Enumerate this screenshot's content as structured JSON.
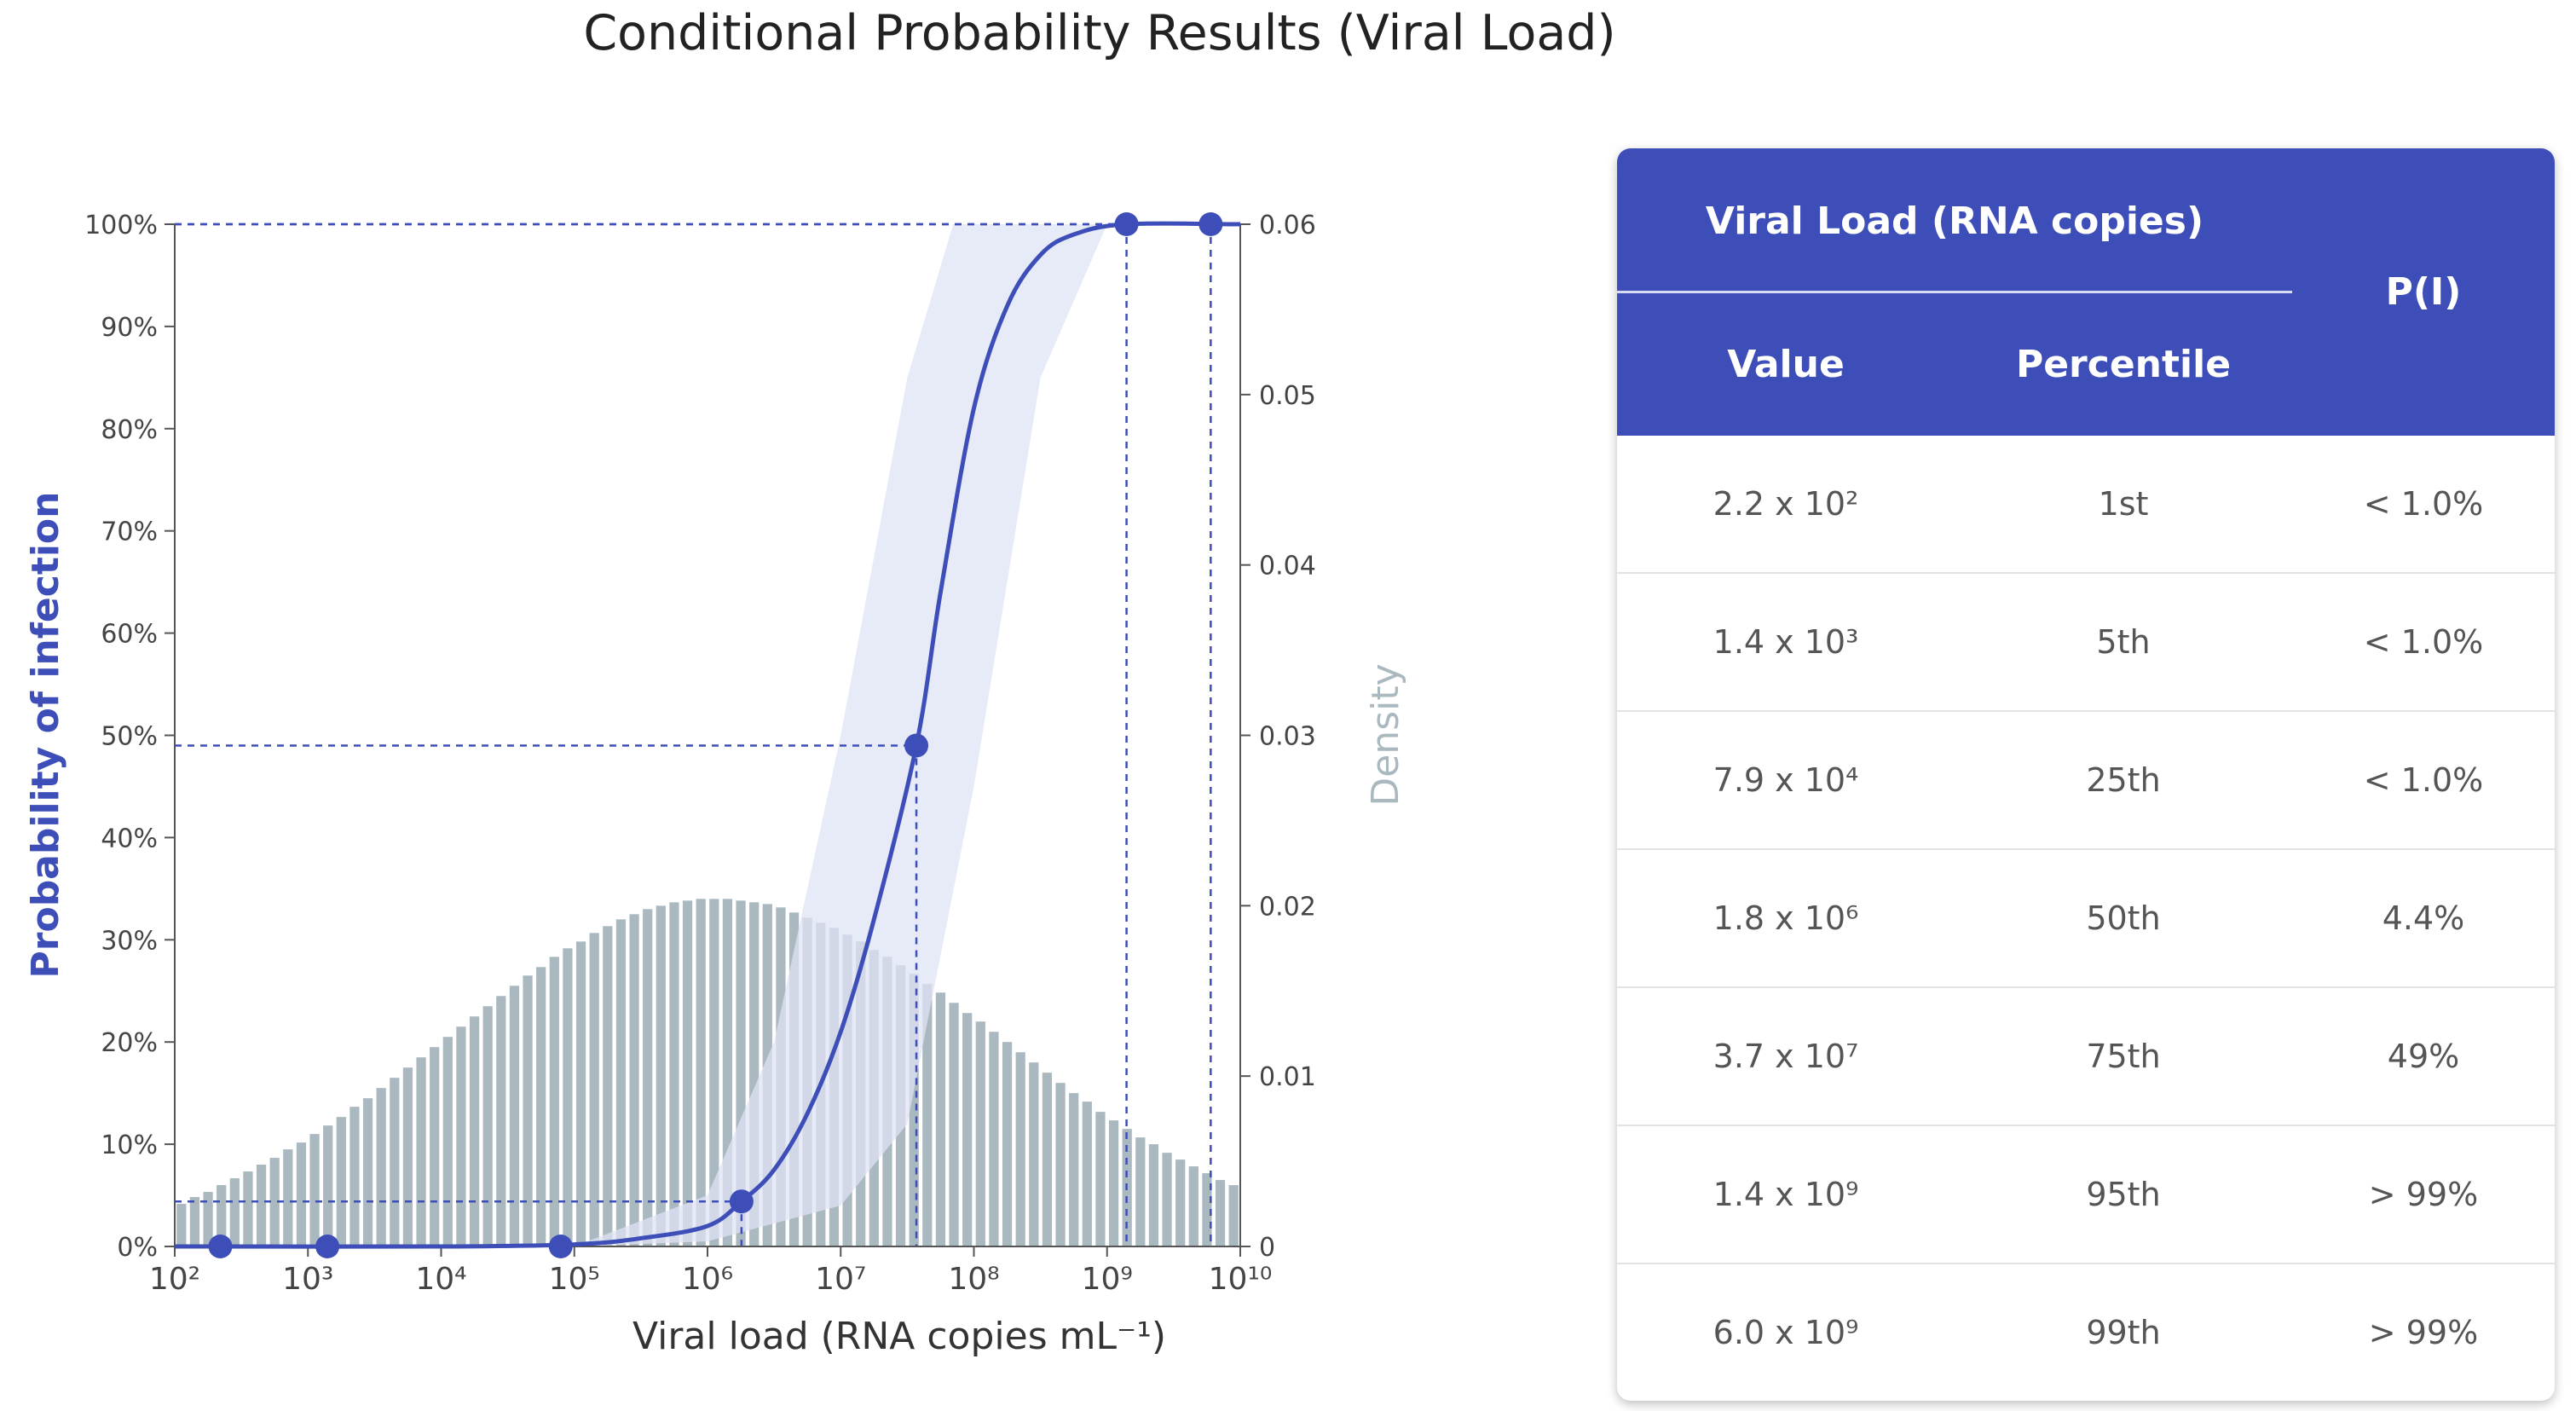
{
  "title": "Conditional Probability Results (Viral Load)",
  "chart_data": {
    "type": "line",
    "xlabel": "Viral load (RNA copies mL⁻¹)",
    "ylabel_left": "Probability of infection",
    "ylabel_right": "Density",
    "x_scale": "log",
    "xlim": [
      100,
      10000000000
    ],
    "ylim_left": [
      0,
      1
    ],
    "ylim_right": [
      0,
      0.06
    ],
    "x_ticks": [
      "10²",
      "10³",
      "10⁴",
      "10⁵",
      "10⁶",
      "10⁷",
      "10⁸",
      "10⁹",
      "10¹⁰"
    ],
    "y_ticks_left": [
      "0%",
      "10%",
      "20%",
      "30%",
      "40%",
      "50%",
      "60%",
      "70%",
      "80%",
      "90%",
      "100%"
    ],
    "y_ticks_right": [
      "0",
      "0.01",
      "0.02",
      "0.03",
      "0.04",
      "0.05",
      "0.06"
    ],
    "dose_response": {
      "type": "line",
      "color": "#3d4eb8",
      "points": [
        {
          "x": 100,
          "y": 0
        },
        {
          "x": 10000,
          "y": 0
        },
        {
          "x": 100000,
          "y": 0.002
        },
        {
          "x": 316228,
          "y": 0.008
        },
        {
          "x": 1000000,
          "y": 0.02
        },
        {
          "x": 1800000,
          "y": 0.044
        },
        {
          "x": 3162278,
          "y": 0.075
        },
        {
          "x": 5623413,
          "y": 0.13
        },
        {
          "x": 10000000,
          "y": 0.21
        },
        {
          "x": 17782794,
          "y": 0.32
        },
        {
          "x": 37000000,
          "y": 0.49
        },
        {
          "x": 56234133,
          "y": 0.64
        },
        {
          "x": 100000000,
          "y": 0.82
        },
        {
          "x": 177827941,
          "y": 0.92
        },
        {
          "x": 316227766,
          "y": 0.97
        },
        {
          "x": 562341325,
          "y": 0.99
        },
        {
          "x": 1400000000,
          "y": 1.0
        },
        {
          "x": 10000000000,
          "y": 1.0
        }
      ]
    },
    "confidence_band": {
      "type": "area",
      "color": "#dfe3f4",
      "lower": [
        {
          "x": 100000,
          "y": 0
        },
        {
          "x": 1000000,
          "y": 0.005
        },
        {
          "x": 10000000,
          "y": 0.04
        },
        {
          "x": 31622777,
          "y": 0.12
        },
        {
          "x": 100000000,
          "y": 0.45
        },
        {
          "x": 316227766,
          "y": 0.85
        },
        {
          "x": 1000000000,
          "y": 1.0
        }
      ],
      "upper": [
        {
          "x": 1000000,
          "y": 0.05
        },
        {
          "x": 3162278,
          "y": 0.2
        },
        {
          "x": 10000000,
          "y": 0.5
        },
        {
          "x": 31622777,
          "y": 0.85
        },
        {
          "x": 70000000,
          "y": 1.0
        },
        {
          "x": 1000000000,
          "y": 1.0
        }
      ]
    },
    "markers": [
      {
        "percentile": "1st",
        "x": 220,
        "y": 0
      },
      {
        "percentile": "5th",
        "x": 1400,
        "y": 0
      },
      {
        "percentile": "25th",
        "x": 79000,
        "y": 0
      },
      {
        "percentile": "50th",
        "x": 1800000,
        "y": 0.044
      },
      {
        "percentile": "75th",
        "x": 37000000,
        "y": 0.49
      },
      {
        "percentile": "95th",
        "x": 1400000000,
        "y": 1.0
      },
      {
        "percentile": "99th",
        "x": 6000000000,
        "y": 1.0
      }
    ],
    "density": {
      "type": "bar",
      "color": "#aab9c0",
      "x_start_log10": 2.0,
      "bin_width_log10": 0.1,
      "values": [
        0.0025,
        0.0029,
        0.0032,
        0.0036,
        0.004,
        0.0044,
        0.0048,
        0.0052,
        0.0057,
        0.0061,
        0.0066,
        0.0071,
        0.0076,
        0.0082,
        0.0087,
        0.0093,
        0.0099,
        0.0105,
        0.0111,
        0.0117,
        0.0123,
        0.0129,
        0.0135,
        0.0141,
        0.0147,
        0.0153,
        0.0159,
        0.0164,
        0.017,
        0.0175,
        0.0179,
        0.0184,
        0.0188,
        0.0192,
        0.0195,
        0.0198,
        0.02,
        0.0202,
        0.0203,
        0.0204,
        0.0204,
        0.0204,
        0.0203,
        0.0202,
        0.0201,
        0.0199,
        0.0196,
        0.0193,
        0.019,
        0.0187,
        0.0183,
        0.0179,
        0.0174,
        0.017,
        0.0165,
        0.016,
        0.0154,
        0.0149,
        0.0143,
        0.0137,
        0.0132,
        0.0126,
        0.012,
        0.0114,
        0.0108,
        0.0102,
        0.0096,
        0.009,
        0.0085,
        0.0079,
        0.0074,
        0.0069,
        0.0064,
        0.006,
        0.0055,
        0.0051,
        0.0047,
        0.0043,
        0.0039,
        0.0036
      ]
    }
  },
  "table": {
    "group_header": "Viral Load (RNA copies)",
    "col_value": "Value",
    "col_percentile": "Percentile",
    "col_p": "P(I)",
    "rows": [
      {
        "value": "2.2 x 10²",
        "percentile": "1st",
        "p": "< 1.0%"
      },
      {
        "value": "1.4 x 10³",
        "percentile": "5th",
        "p": "< 1.0%"
      },
      {
        "value": "7.9 x 10⁴",
        "percentile": "25th",
        "p": "< 1.0%"
      },
      {
        "value": "1.8 x 10⁶",
        "percentile": "50th",
        "p": "4.4%"
      },
      {
        "value": "3.7 x 10⁷",
        "percentile": "75th",
        "p": "49%"
      },
      {
        "value": "1.4 x 10⁹",
        "percentile": "95th",
        "p": "> 99%"
      },
      {
        "value": "6.0 x 10⁹",
        "percentile": "99th",
        "p": "> 99%"
      }
    ]
  }
}
